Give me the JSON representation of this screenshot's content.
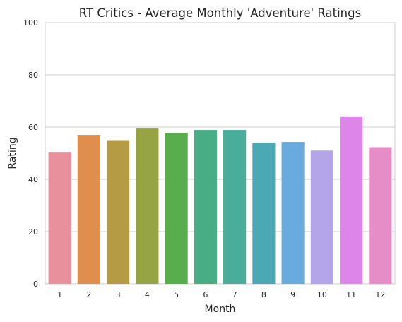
{
  "chart_data": {
    "type": "bar",
    "title": "RT Critics - Average Monthly 'Adventure' Ratings",
    "xlabel": "Month",
    "ylabel": "Rating",
    "categories": [
      "1",
      "2",
      "3",
      "4",
      "5",
      "6",
      "7",
      "8",
      "9",
      "10",
      "11",
      "12"
    ],
    "values": [
      50.5,
      57,
      55,
      59.7,
      57.8,
      58.9,
      58.9,
      54,
      54.3,
      51,
      64.1,
      52.3
    ],
    "colors": [
      "#e8919c",
      "#e08e4e",
      "#b69b45",
      "#97a443",
      "#58ad4c",
      "#48ad84",
      "#4aad9b",
      "#4ba8b5",
      "#69abdf",
      "#b3a5e8",
      "#de85ea",
      "#e68cc7"
    ],
    "ylim": [
      0,
      100
    ],
    "yticks": [
      0,
      20,
      40,
      60,
      80,
      100
    ],
    "grid": "horizontal",
    "legend": "none"
  }
}
